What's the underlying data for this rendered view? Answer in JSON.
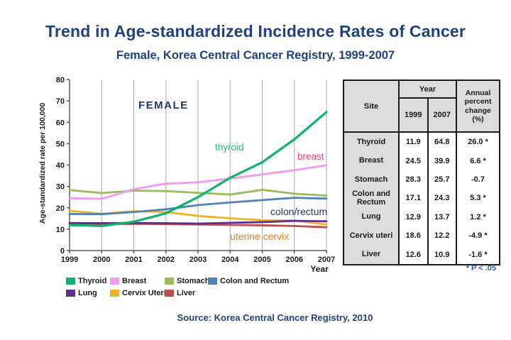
{
  "title": "Trend in Age-standardized Incidence Rates of Cancer",
  "subtitle": "Female, Korea Central Cancer Registry, 1999-2007",
  "source": "Source: Korea Central Cancer Registry, 2010",
  "colors": {
    "heading_navy": "#1f4182",
    "annotation_navy": "#1f3864",
    "footnote_blue": "#2a5db0",
    "gridline_gray": "#a8a8a8",
    "axis_gray": "#595959"
  },
  "chart_data": {
    "type": "line",
    "title": "",
    "xlabel": "Year",
    "ylabel": "Age-standardized rate per 100,000",
    "ylim": [
      0,
      80
    ],
    "y_ticks": [
      0,
      10,
      20,
      30,
      40,
      50,
      60,
      70,
      80
    ],
    "grid": "vertical-only",
    "legend_position": "bottom",
    "categories": [
      "1999",
      "2000",
      "2001",
      "2002",
      "2003",
      "2004",
      "2005",
      "2006",
      "2007"
    ],
    "series": [
      {
        "name": "Thyroid",
        "color": "#0db36f",
        "values": [
          11.9,
          11.5,
          13.5,
          17.4,
          25.0,
          34.0,
          41.3,
          52.0,
          64.8
        ]
      },
      {
        "name": "Breast",
        "color": "#f397ef",
        "values": [
          24.5,
          24.2,
          28.7,
          31.3,
          31.9,
          33.7,
          35.6,
          37.6,
          39.9
        ]
      },
      {
        "name": "Stomach",
        "color": "#9bbb59",
        "values": [
          28.3,
          26.9,
          28.0,
          27.8,
          27.0,
          26.2,
          28.4,
          26.6,
          25.7
        ]
      },
      {
        "name": "Colon and Rectum",
        "color": "#4f81bd",
        "values": [
          17.1,
          17.0,
          18.0,
          19.3,
          21.3,
          22.5,
          23.6,
          24.7,
          24.3
        ]
      },
      {
        "name": "Lung",
        "color": "#5f2d91",
        "values": [
          12.9,
          12.8,
          12.9,
          12.8,
          12.6,
          13.0,
          13.3,
          13.9,
          13.7
        ]
      },
      {
        "name": "Cervix Uteri",
        "color": "#eeb222",
        "values": [
          18.6,
          17.2,
          18.4,
          18.0,
          16.2,
          15.1,
          14.2,
          14.0,
          12.2
        ]
      },
      {
        "name": "Liver",
        "color": "#bb4f4c",
        "values": [
          12.6,
          12.4,
          12.5,
          12.4,
          12.2,
          12.0,
          11.8,
          11.5,
          10.9
        ]
      }
    ],
    "annotations": [
      {
        "name": "female-label",
        "text": "FEMALE",
        "color": "#1f3864"
      },
      {
        "name": "thyroid-label",
        "text": "thyroid",
        "color": "#2eb870"
      },
      {
        "name": "breast-label",
        "text": "breast",
        "color": "#f0437f"
      },
      {
        "name": "colon-rectum-label",
        "text": "colon/rectum",
        "color": "#1f3864"
      },
      {
        "name": "uterine-cervix-label",
        "text": "uterine cervix",
        "color": "#e87d1e"
      }
    ]
  },
  "legend": {
    "items": [
      {
        "label": "Thyroid",
        "color": "#0db36f"
      },
      {
        "label": "Breast",
        "color": "#f397ef"
      },
      {
        "label": "Stomach",
        "color": "#9bbb59"
      },
      {
        "label": "Colon and Rectum",
        "color": "#4f81bd"
      },
      {
        "label": "Lung",
        "color": "#5f2d91"
      },
      {
        "label": "Cervix Uteri",
        "color": "#eeb222"
      },
      {
        "label": "Liver",
        "color": "#bb4f4c"
      }
    ]
  },
  "table": {
    "col_site": "Site",
    "col_year": "Year",
    "col_1999": "1999",
    "col_2007": "2007",
    "col_apc": "Annual percent change (%)",
    "rows": [
      {
        "site": "Thyroid",
        "y1999": "11.9",
        "y2007": "64.8",
        "apc": "26.0 *"
      },
      {
        "site": "Breast",
        "y1999": "24.5",
        "y2007": "39.9",
        "apc": "6.6 *"
      },
      {
        "site": "Stomach",
        "y1999": "28.3",
        "y2007": "25.7",
        "apc": "-0.7"
      },
      {
        "site": "Colon and Rectum",
        "y1999": "17.1",
        "y2007": "24.3",
        "apc": "5.3 *"
      },
      {
        "site": "Lung",
        "y1999": "12.9",
        "y2007": "13.7",
        "apc": "1.2 *"
      },
      {
        "site": "Cervix uteri",
        "y1999": "18.6",
        "y2007": "12.2",
        "apc": "-4.9 *"
      },
      {
        "site": "Liver",
        "y1999": "12.6",
        "y2007": "10.9",
        "apc": "-1.6 *"
      }
    ],
    "footnote": "* P < .05"
  }
}
